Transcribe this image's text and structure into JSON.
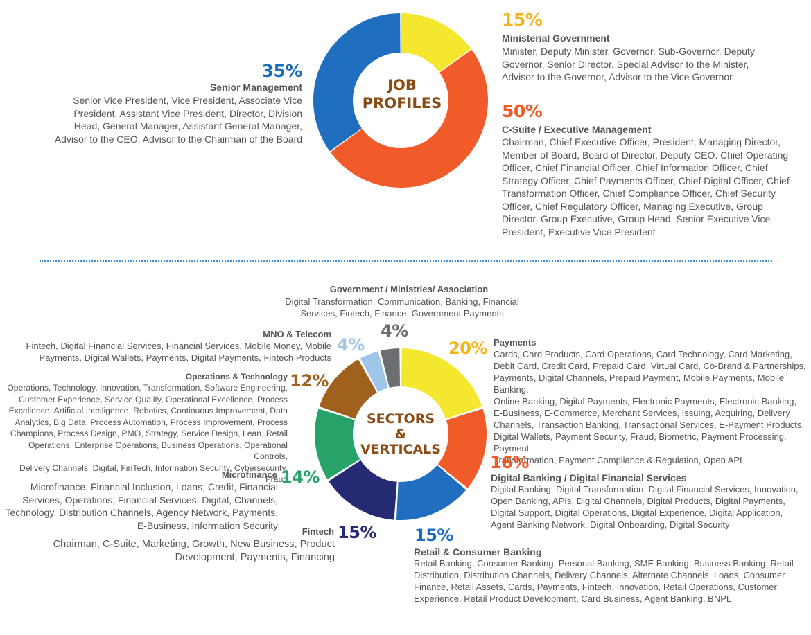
{
  "colors": {
    "blue": "#1f6ebf",
    "yellow": "#f5e72e",
    "orange": "#f15a29",
    "yellow_text": "#f6b417",
    "orange_text": "#ef5a24",
    "brown": "#a0611f",
    "light_blue": "#9fc5e8",
    "gray": "#6d6e71",
    "green": "#27a36a",
    "navy": "#262a73",
    "blue_dark": "#1b6bbf",
    "center_text": "#8a4a12"
  },
  "chart_data": [
    {
      "type": "pie",
      "title": "JOB PROFILES",
      "categories": [
        "Ministerial Government",
        "C-Suite / Executive Management",
        "Senior Management"
      ],
      "values": [
        15,
        50,
        35
      ],
      "labels": [
        "15%",
        "50%",
        "35%"
      ],
      "slice_colors": [
        "#f5e72e",
        "#f15a29",
        "#1f6ebf"
      ],
      "descriptions": [
        "Minister, Deputy Minister, Governor, Sub-Governor, Deputy Governor, Senior Director, Special Advisor to the Minister, Advisor to the Governor, Advisor to the Vice Governor",
        "Chairman, Chief Executive Officer, President, Managing Director, Member of Board, Board of Director, Deputy CEO. Chief Operating Officer, Chief Financial Officer, Chief Information Officer, Chief Strategy Officer, Chief Payments Officer, Chief Digital Officer, Chief Transformation Officer, Chief Compliance Officer, Chief Security Officer, Chief Regulatory Officer, Managing Executive, Group Director, Group Executive, Group Head, Senior Executive Vice President, Executive Vice President",
        "Senior Vice President, Vice President, Associate Vice President, Assistant Vice President, Director, Division Head, General Manager, Assistant General Manager, Advisor to the CEO, Advisor to the Chairman of the Board"
      ]
    },
    {
      "type": "pie",
      "title": "SECTORS & VERTICALS",
      "categories": [
        "Payments",
        "Digital Banking / Digital Financial Services",
        "Retail & Consumer Banking",
        "Fintech",
        "Microfinance",
        "Operations & Technology",
        "MNO & Telecom",
        "Government / Ministries/ Association"
      ],
      "values": [
        20,
        16,
        15,
        15,
        14,
        12,
        4,
        4
      ],
      "labels": [
        "20%",
        "16%",
        "15%",
        "15%",
        "14%",
        "12%",
        "4%",
        "4%"
      ],
      "slice_colors": [
        "#f5e72e",
        "#f15a29",
        "#1f6ebf",
        "#262a73",
        "#27a36a",
        "#a0611f",
        "#9fc5e8",
        "#6d6e71"
      ],
      "descriptions": [
        "Cards, Card Products, Card Operations, Card Technology, Card Marketing, Debit Card, Credit Card, Prepaid Card, Virtual Card, Co-Brand & Partnerships, Payments, Digital Channels, Prepaid Payment, Mobile Payments, Mobile Banking, Online Banking, Digital Payments, Electronic Payments, Electronic Banking, E-Business, E-Commerce, Merchant Services, Issuing, Acquiring, Delivery Channels, Transaction Banking, Transactional Services, E-Payment Products, Digital Wallets, Payment Security, Fraud, Biometric, Payment Processing, Payment Transformation, Payment Compliance & Regulation, Open API",
        "Digital Banking, Digital Transformation, Digital Financial Services, Innovation, Open Banking, APIs, Digital Channels, Digital Products, Digital Payments, Digital Support, Digital Operations, Digital Experience, Digital Application, Agent Banking Network, Digital Onboarding, Digital Security",
        "Retail Banking, Consumer Banking, Personal Banking, SME Banking, Business Banking, Retail Distribution, Distribution Channels, Delivery Channels, Alternate Channels, Loans, Consumer Finance, Retail Assets, Cards, Payments, Fintech, Innovation, Retail Operations, Customer Experience, Retail Product Development, Card Business, Agent Banking, BNPL",
        "Chairman, C-Suite, Marketing, Growth, New Business, Product Development, Payments, Financing",
        "Microfinance, Financial Inclusion, Loans, Credit, Financial Services, Operations, Financial Services, Digital, Channels, Technology, Distribution Channels, Agency Network, Payments, E-Business, Information Security",
        "Operations, Technology, Innovation, Transformation, Software Engineering, Customer Experience, Service Quality, Operational Excellence, Process Excellence, Artificial Intelligence, Robotics, Continuous Improvement, Data Analytics, Big Data, Process Automation, Process Improvement, Process Champions, Process Design, PMO, Strategy, Service Design, Lean, Retail Operations, Enterprise Operations, Business Operations, Operational Controls, Delivery Channels, Digital, FinTech, Information Security, Cybersecurity, Fraud",
        "Fintech, Digital Financial Services, Financial Services, Mobile Money, Mobile Payments, Digital Wallets, Payments, Digital Payments, Fintech Products",
        "Digital Transformation, Communication, Banking, Financial Services, Fintech, Finance, Government Payments"
      ]
    }
  ],
  "job": {
    "center_line1": "JOB",
    "center_line2": "PROFILES",
    "ministerial": {
      "pct": "15%",
      "title": "Ministerial Government",
      "desc_lines": [
        "Minister, Deputy Minister, Governor, Sub-Governor, Deputy",
        "Governor, Senior Director, Special Advisor to the Minister,",
        "Advisor to the Governor, Advisor to the Vice Governor"
      ]
    },
    "csuite": {
      "pct": "50%",
      "title": "C-Suite / Executive Management",
      "desc_lines": [
        "Chairman, Chief Executive Officer, President, Managing Director,",
        "Member of Board, Board of Director, Deputy CEO. Chief Operating",
        "Officer, Chief Financial Officer, Chief Information Officer, Chief",
        "Strategy Officer, Chief Payments Officer, Chief Digital Officer, Chief",
        "Transformation Officer, Chief Compliance Officer, Chief Security",
        "Officer, Chief Regulatory Officer, Managing Executive, Group",
        "Director, Group Executive, Group Head, Senior Executive Vice",
        "President, Executive Vice President"
      ]
    },
    "senior": {
      "pct": "35%",
      "title": "Senior Management",
      "desc_lines": [
        "Senior Vice President, Vice President, Associate Vice",
        "President, Assistant Vice President, Director, Division",
        "Head, General Manager, Assistant General Manager,",
        "Advisor to the CEO, Advisor to the Chairman of the Board"
      ]
    }
  },
  "sectors": {
    "center_line1": "SECTORS",
    "center_line2": "&",
    "center_line3": "VERTICALS",
    "government": {
      "pct": "4%",
      "title": "Government / Ministries/ Association",
      "desc_lines": [
        "Digital Transformation, Communication, Banking, Financial",
        "Services, Fintech, Finance, Government Payments"
      ]
    },
    "mno": {
      "pct": "4%",
      "title": "MNO & Telecom",
      "desc_lines": [
        "Fintech, Digital Financial Services, Financial Services, Mobile Money, Mobile",
        "Payments, Digital Wallets, Payments, Digital Payments, Fintech Products"
      ]
    },
    "operations": {
      "pct": "12%",
      "title": "Operations & Technology",
      "desc_lines": [
        "Operations, Technology, Innovation, Transformation, Software Engineering,",
        "Customer Experience, Service Quality, Operational Excellence, Process",
        "Excellence, Artificial Intelligence, Robotics, Continuous Improvement, Data",
        "Analytics, Big Data, Process Automation, Process Improvement, Process",
        "Champions, Process Design, PMO, Strategy, Service Design, Lean, Retail",
        "Operations, Enterprise Operations, Business Operations, Operational Controls,",
        "Delivery Channels, Digital, FinTech, Information Security, Cybersecurity, Fraud"
      ]
    },
    "microfinance": {
      "pct": "14%",
      "title": "Microfinance",
      "desc_lines": [
        "Microfinance, Financial Inclusion, Loans, Credit, Financial",
        "Services, Operations, Financial Services, Digital, Channels,",
        "Technology, Distribution Channels, Agency Network, Payments,",
        "E-Business, Information Security"
      ]
    },
    "fintech": {
      "pct": "15%",
      "title": "Fintech",
      "desc_lines": [
        "Chairman, C-Suite, Marketing, Growth, New Business, Product",
        "Development, Payments, Financing"
      ]
    },
    "payments": {
      "pct": "20%",
      "title": "Payments",
      "desc_lines": [
        "Cards, Card Products, Card Operations, Card Technology, Card Marketing,",
        "Debit Card, Credit Card, Prepaid Card, Virtual Card, Co-Brand & Partnerships,",
        "Payments, Digital Channels, Prepaid Payment, Mobile Payments, Mobile Banking,",
        "Online Banking, Digital Payments, Electronic Payments, Electronic Banking,",
        "E-Business, E-Commerce, Merchant Services, Issuing, Acquiring, Delivery",
        "Channels, Transaction Banking, Transactional Services, E-Payment Products,",
        "Digital Wallets, Payment Security, Fraud, Biometric, Payment Processing, Payment",
        "Transformation, Payment Compliance & Regulation, Open API"
      ]
    },
    "digital": {
      "pct": "16%",
      "title": "Digital Banking / Digital Financial Services",
      "desc_lines": [
        "Digital Banking, Digital Transformation, Digital Financial Services, Innovation,",
        "Open Banking, APIs, Digital Channels, Digital Products, Digital Payments,",
        "Digital Support, Digital Operations, Digital Experience, Digital Application,",
        "Agent Banking Network, Digital Onboarding, Digital Security"
      ]
    },
    "retail": {
      "pct": "15%",
      "title": "Retail & Consumer Banking",
      "desc_lines": [
        "Retail Banking, Consumer Banking, Personal Banking, SME Banking, Business Banking, Retail",
        "Distribution, Distribution Channels, Delivery Channels, Alternate Channels, Loans, Consumer",
        "Finance, Retail Assets, Cards, Payments, Fintech, Innovation, Retail Operations, Customer",
        "Experience, Retail Product Development, Card Business, Agent Banking, BNPL"
      ]
    }
  }
}
